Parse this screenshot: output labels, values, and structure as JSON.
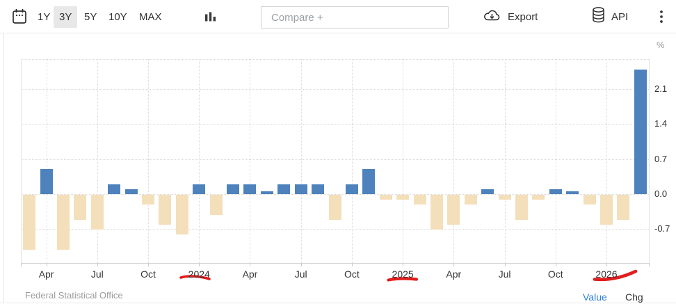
{
  "toolbar": {
    "ranges": [
      "1Y",
      "3Y",
      "5Y",
      "10Y",
      "MAX"
    ],
    "active_range": "3Y",
    "compare_placeholder": "Compare +",
    "export_label": "Export",
    "api_label": "API",
    "icons": [
      "calendar-icon",
      "bar-chart-type-icon",
      "cloud-download-icon",
      "database-icon",
      "kebab-menu-icon"
    ]
  },
  "axis": {
    "unit": "%"
  },
  "footer": {
    "source": "Federal Statistical Office",
    "value_link": "Value",
    "chg_link": "Chg"
  },
  "annotations": {
    "style": "hand-drawn red underline",
    "underlined_labels": [
      "2024",
      "2025",
      "2026"
    ],
    "color": "#e21d1d"
  },
  "chart_data": {
    "type": "bar",
    "title": "",
    "xlabel": "",
    "ylabel": "%",
    "legend": "none",
    "grid": "dotted",
    "categories": [
      "Mar 2023",
      "Apr 2023",
      "May 2023",
      "Jun 2023",
      "Jul 2023",
      "Aug 2023",
      "Sep 2023",
      "Oct 2023",
      "Nov 2023",
      "Dec 2023",
      "Jan 2024",
      "Feb 2024",
      "Mar 2024",
      "Apr 2024",
      "May 2024",
      "Jun 2024",
      "Jul 2024",
      "Aug 2024",
      "Sep 2024",
      "Oct 2024",
      "Nov 2024",
      "Dec 2024",
      "Jan 2025",
      "Feb 2025",
      "Mar 2025",
      "Apr 2025",
      "May 2025",
      "Jun 2025",
      "Jul 2025",
      "Aug 2025",
      "Sep 2025",
      "Oct 2025",
      "Nov 2025",
      "Dec 2025",
      "Jan 2026",
      "Feb 2026",
      "Mar 2026"
    ],
    "values": [
      -1.1,
      0.5,
      -1.1,
      -0.5,
      -0.7,
      0.2,
      0.1,
      -0.2,
      -0.6,
      -0.8,
      0.2,
      -0.4,
      0.2,
      0.2,
      0.05,
      0.2,
      0.2,
      0.2,
      -0.5,
      0.2,
      0.5,
      -0.1,
      -0.1,
      -0.2,
      -0.7,
      -0.6,
      -0.2,
      0.1,
      -0.1,
      -0.5,
      -0.1,
      0.1,
      0.05,
      -0.2,
      -0.6,
      -0.5,
      2.5
    ],
    "xtick_labels": [
      "Apr",
      "Jul",
      "Oct",
      "2024",
      "Apr",
      "Jul",
      "Oct",
      "2025",
      "Apr",
      "Jul",
      "Oct",
      "2026"
    ],
    "yticks": [
      2.1,
      1.4,
      0.7,
      0.0,
      -0.7
    ],
    "ylim": [
      -1.4,
      2.7
    ],
    "colors": {
      "positive": "#4e82bc",
      "negative": "#f3dfba"
    }
  }
}
